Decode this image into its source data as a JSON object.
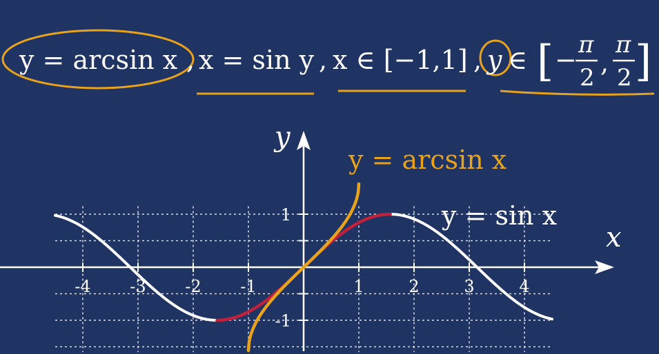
{
  "formula": {
    "part1": "y = arcsin x",
    "sep1": ",",
    "part2": "x = sin y",
    "sep2": ",",
    "part3": "x ∈ [−1,1]",
    "sep3": ",",
    "part4_var": "y",
    "part4_in": "∈",
    "interval_open": "[",
    "interval_minus": "−",
    "pi_num_1": "π",
    "den_1": "2",
    "interval_comma": ",",
    "pi_num_2": "π",
    "den_2": "2",
    "interval_close": "]"
  },
  "colors": {
    "background": "#1f3462",
    "sin_curve": "#ffffff",
    "arcsin_curve": "#e8a21c",
    "restricted_sin": "#c0213a",
    "annotation": "#e8a21c",
    "axis": "#ffffff",
    "grid": "#ffffff"
  },
  "chart_data": {
    "type": "line",
    "title": "",
    "xlabel": "x",
    "ylabel": "y",
    "xlim": [
      -4.5,
      5.2
    ],
    "ylim": [
      -1.3,
      1.6
    ],
    "x_ticks": [
      -4,
      -3,
      -2,
      -1,
      1,
      2,
      3,
      4
    ],
    "x_tick_labels": [
      "-4",
      "-3",
      "-2",
      "-1",
      "1",
      "2",
      "3",
      "4"
    ],
    "y_ticks": [
      1,
      -1
    ],
    "y_tick_labels": [
      "1",
      "-1"
    ],
    "grid": true,
    "series": [
      {
        "name": "y = sin x",
        "function": "sin",
        "x_range": [
          -4.5,
          4.5
        ],
        "color": "#ffffff"
      },
      {
        "name": "",
        "function": "sin",
        "x_range": [
          -1.5708,
          1.5708
        ],
        "color": "#c0213a"
      },
      {
        "name": "y = arcsin x",
        "function": "arcsin",
        "x_range": [
          -1,
          1
        ],
        "color": "#e8a21c"
      }
    ]
  }
}
